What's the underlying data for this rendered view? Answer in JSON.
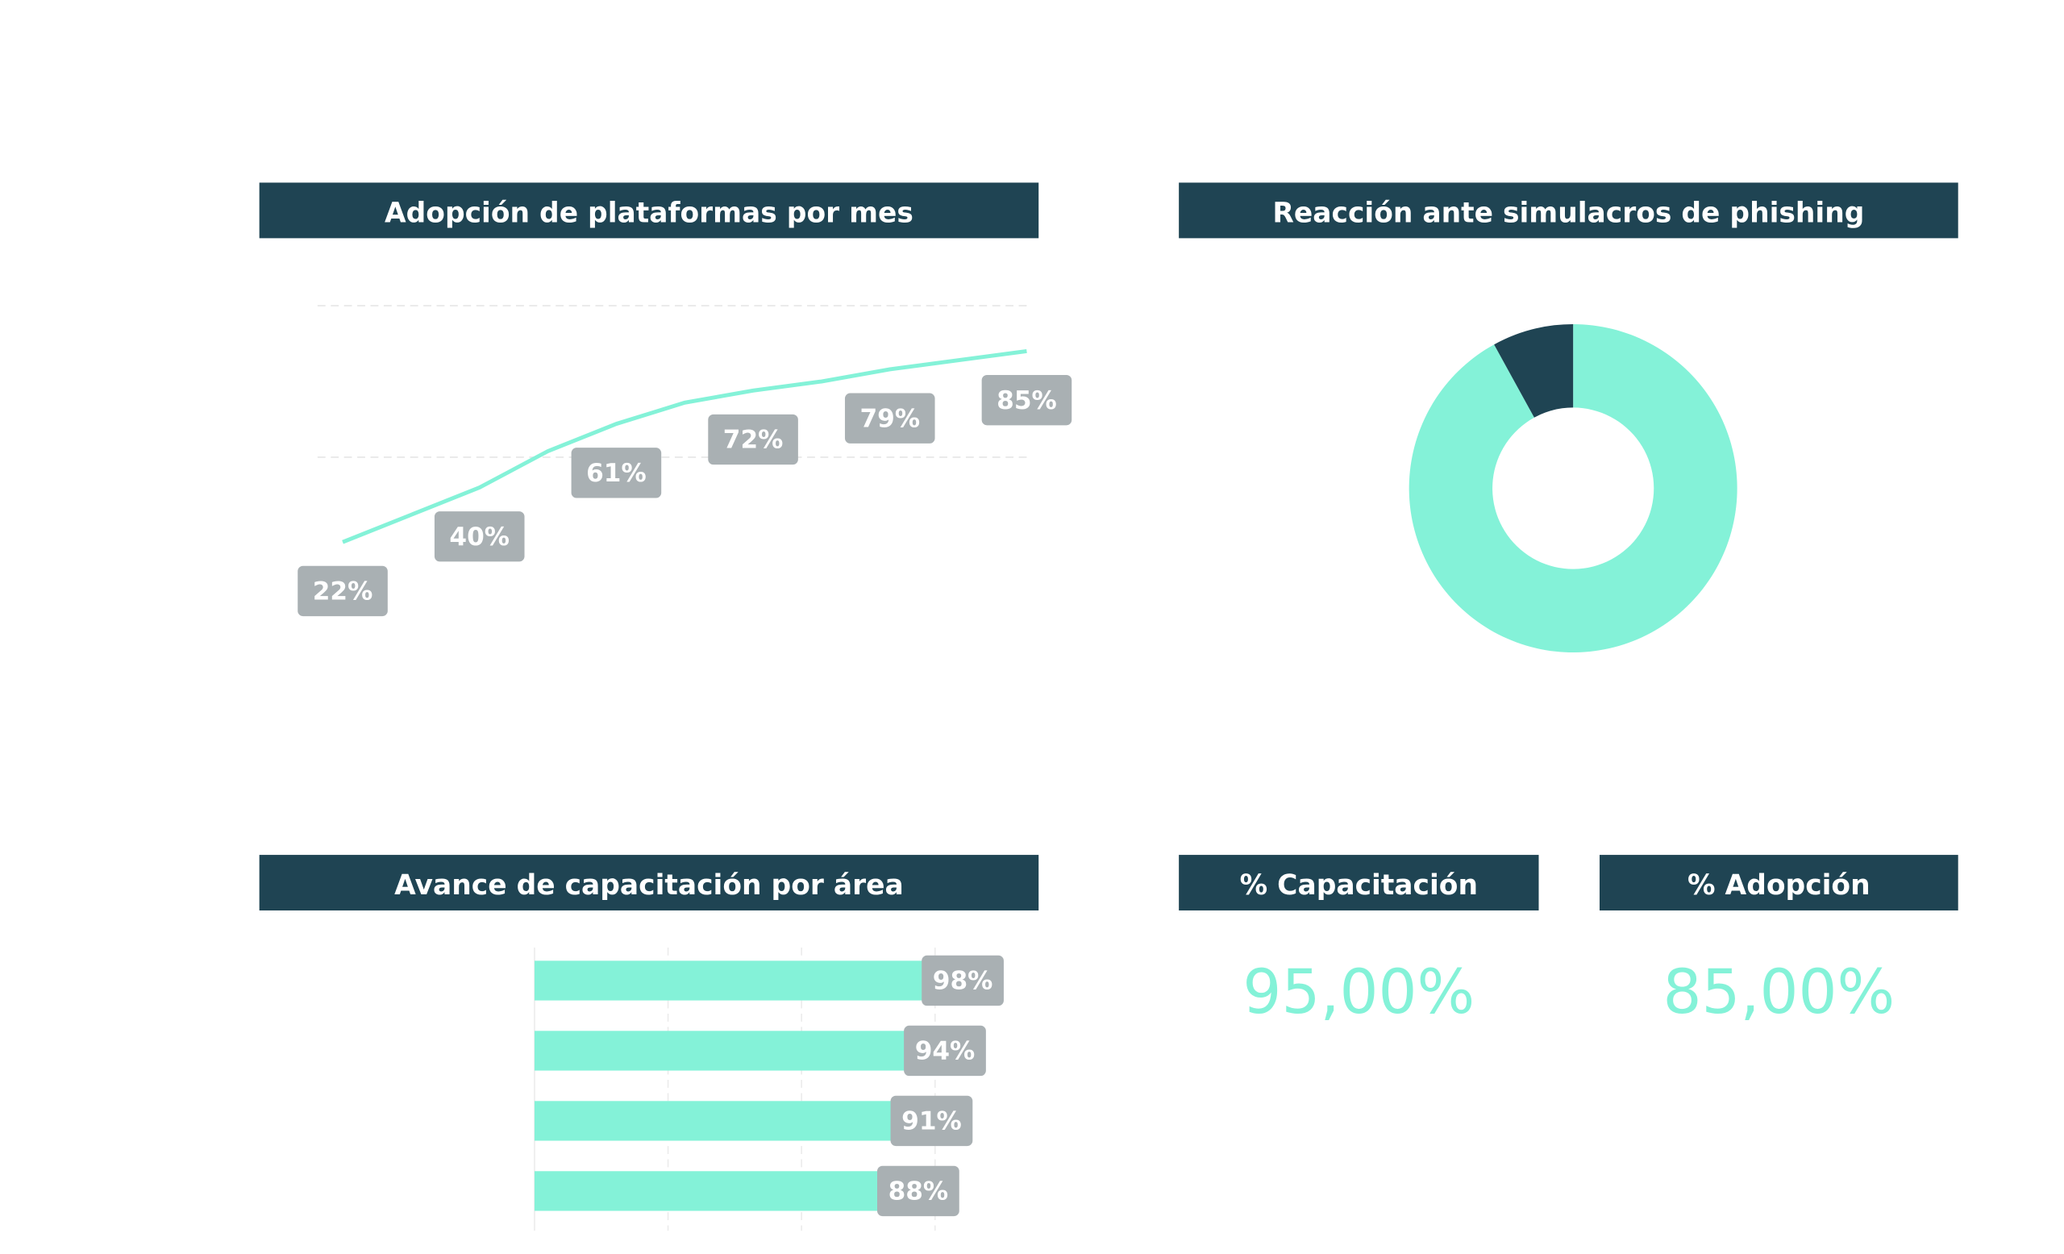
{
  "chart_data": [
    {
      "type": "line",
      "title": "Adopción de plataformas por mes",
      "categories": [
        null,
        null,
        null,
        null,
        null,
        null,
        null,
        null,
        null,
        null,
        null
      ],
      "values": [
        22,
        31,
        40,
        52,
        61,
        68,
        72,
        75,
        79,
        82,
        85
      ],
      "value_labels": [
        "22%",
        null,
        "40%",
        null,
        "61%",
        null,
        "72%",
        null,
        "79%",
        null,
        "85%"
      ],
      "color": "#84f2d8",
      "ylim": [
        0,
        100
      ],
      "yticks": [
        50,
        100
      ],
      "grid": true
    },
    {
      "type": "pie",
      "title": "Reacción ante simulacros de phishing",
      "values": [
        92,
        8
      ],
      "colors": [
        "#84f2d8",
        "#1f4453"
      ],
      "donut": true
    },
    {
      "type": "bar",
      "title": "Avance de capacitación por área",
      "orientation": "horizontal",
      "categories": [
        null,
        null,
        null,
        null
      ],
      "values": [
        98,
        94,
        91,
        88
      ],
      "value_labels": [
        "98%",
        "94%",
        "91%",
        "88%"
      ],
      "color": "#84f2d8",
      "xlim": [
        0,
        110
      ],
      "xticks": [
        0,
        30,
        60,
        90
      ],
      "grid": true
    }
  ],
  "kpis": [
    {
      "title": "% Capacitación",
      "value": "95,00%"
    },
    {
      "title": "% Adopción",
      "value": "85,00%"
    }
  ]
}
